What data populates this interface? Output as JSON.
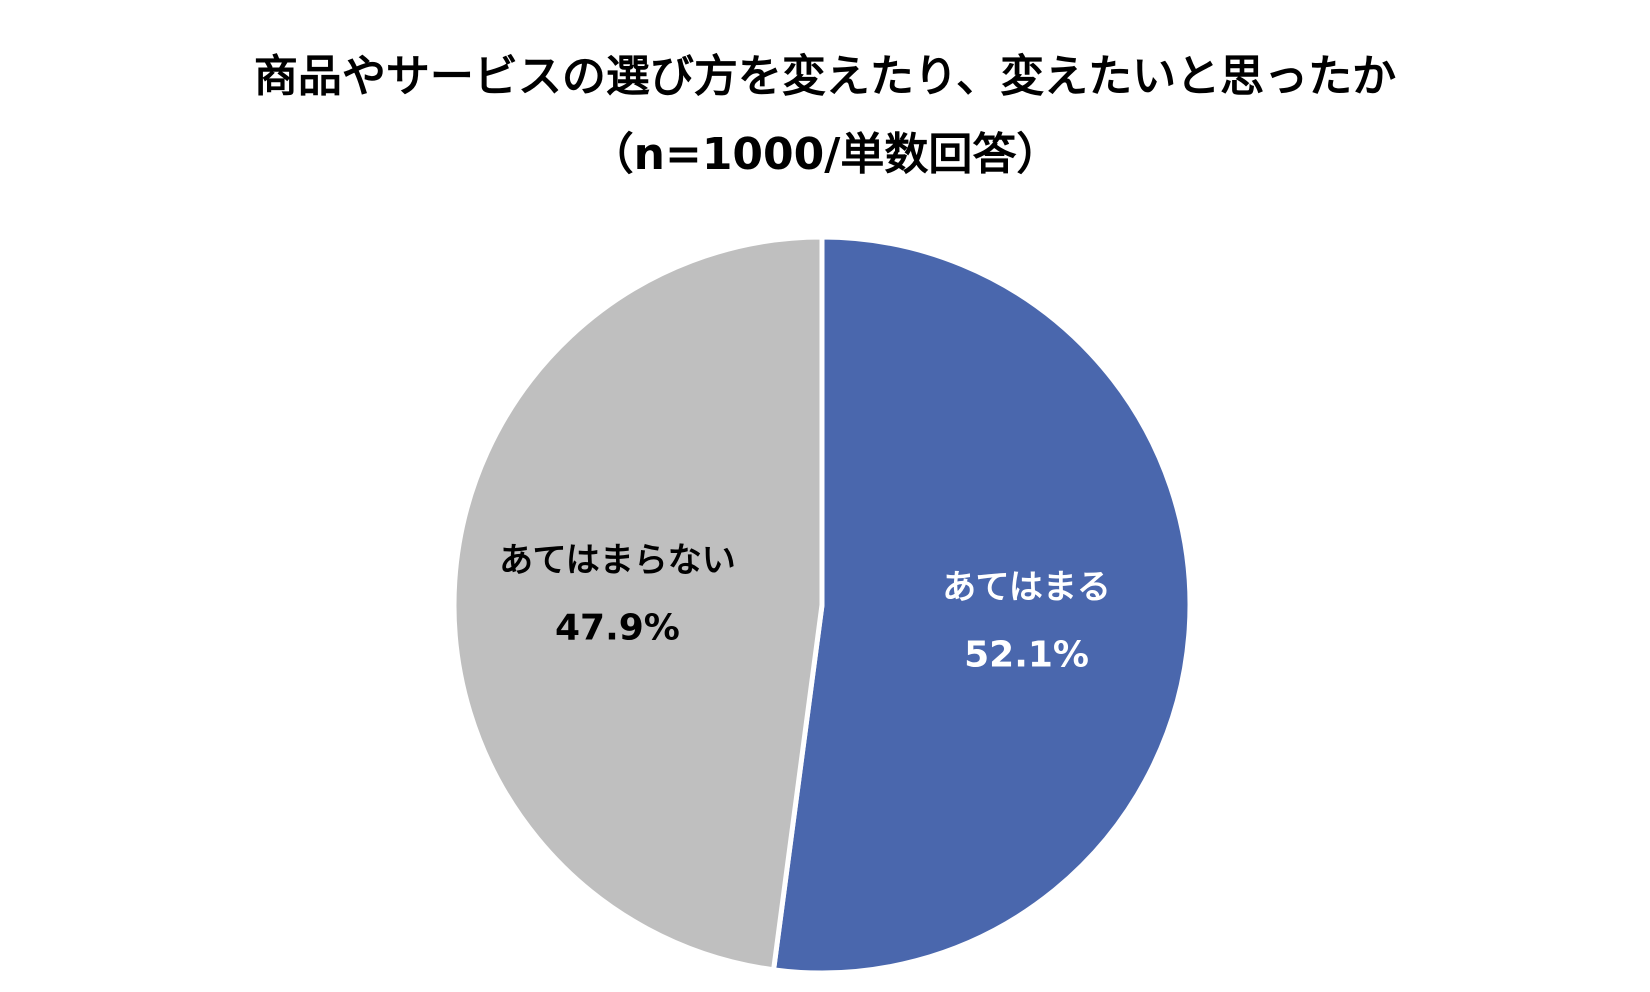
{
  "chart_data": {
    "type": "pie",
    "title": "商品やサービスの選び方を変えたり、変えたいと思ったか",
    "subtitle": "（n=1000/単数回答）",
    "start_angle_deg": 0,
    "direction": "clockwise",
    "slices": [
      {
        "label": "あてはまる",
        "value": 52.1,
        "value_label": "52.1%",
        "color": "#4A67AD",
        "label_color": "#FFFFFF"
      },
      {
        "label": "あてはまらない",
        "value": 47.9,
        "value_label": "47.9%",
        "color": "#BFBFBF",
        "label_color": "#000000"
      }
    ],
    "legend": "none",
    "separator_color": "#FFFFFF"
  }
}
